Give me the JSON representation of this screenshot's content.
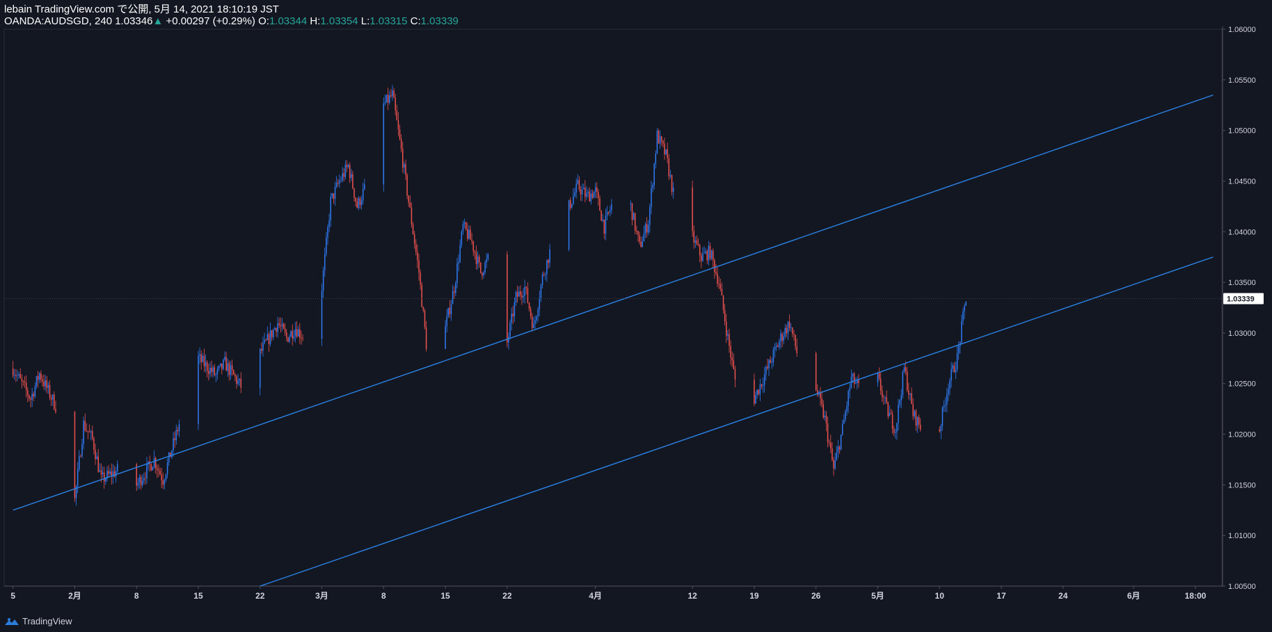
{
  "header": {
    "published": "lebain TradingView.com で公開, 5月 14, 2021 18:10:19 JST",
    "symbol": "OANDA:AUDSGD, 240",
    "last": "1.03346",
    "change": "+0.00297 (+0.29%)",
    "o_label": "O:",
    "o_value": "1.03344",
    "h_label": "H:",
    "h_value": "1.03354",
    "l_label": "L:",
    "l_value": "1.03315",
    "c_label": "C:",
    "c_value": "1.03339"
  },
  "footer": {
    "brand": "TradingView",
    "logo_icon": "tradingview-logo-icon"
  },
  "colors": {
    "background": "#131722",
    "up": "#2f7cf6",
    "down": "#f0524f",
    "channel": "#2a7ddc",
    "axis_text": "#d1d4dc",
    "price_tag_bg": "#ffffff"
  },
  "chart_data": {
    "type": "candlestick",
    "symbol": "OANDA:AUDSGD",
    "interval": "240",
    "ylim": [
      1.005,
      1.06
    ],
    "y_ticks": [
      "1.00500",
      "1.01000",
      "1.01500",
      "1.02000",
      "1.02500",
      "1.03000",
      "1.03500",
      "1.04000",
      "1.04500",
      "1.05000",
      "1.05500",
      "1.06000"
    ],
    "x_ticks": [
      {
        "label": "5",
        "date": "2021-01-25"
      },
      {
        "label": "2月",
        "date": "2021-02-01"
      },
      {
        "label": "8",
        "date": "2021-02-08"
      },
      {
        "label": "15",
        "date": "2021-02-15"
      },
      {
        "label": "22",
        "date": "2021-02-22"
      },
      {
        "label": "3月",
        "date": "2021-03-01"
      },
      {
        "label": "8",
        "date": "2021-03-08"
      },
      {
        "label": "15",
        "date": "2021-03-15"
      },
      {
        "label": "22",
        "date": "2021-03-22"
      },
      {
        "label": "4月",
        "date": "2021-04-01"
      },
      {
        "label": "12",
        "date": "2021-04-12"
      },
      {
        "label": "19",
        "date": "2021-04-19"
      },
      {
        "label": "26",
        "date": "2021-04-26"
      },
      {
        "label": "5月",
        "date": "2021-05-03"
      },
      {
        "label": "10",
        "date": "2021-05-10"
      },
      {
        "label": "17",
        "date": "2021-05-17"
      },
      {
        "label": "24",
        "date": "2021-05-24"
      },
      {
        "label": "6月",
        "date": "2021-06-01"
      },
      {
        "label": "18:00",
        "date": "2021-06-08"
      }
    ],
    "last_price_label": "1.03339",
    "price_path": [
      [
        "2021-01-25",
        1.0265
      ],
      [
        "2021-01-27",
        1.0235
      ],
      [
        "2021-01-28",
        1.026
      ],
      [
        "2021-01-30",
        1.0225
      ],
      [
        "2021-01-31",
        1.0165
      ],
      [
        "2021-02-01",
        1.0135
      ],
      [
        "2021-02-02",
        1.021
      ],
      [
        "2021-02-03",
        1.0195
      ],
      [
        "2021-02-04",
        1.0155
      ],
      [
        "2021-02-06",
        1.0165
      ],
      [
        "2021-02-07",
        1.0125
      ],
      [
        "2021-02-08",
        1.015
      ],
      [
        "2021-02-10",
        1.0175
      ],
      [
        "2021-02-11",
        1.0155
      ],
      [
        "2021-02-13",
        1.0215
      ],
      [
        "2021-02-14",
        1.025
      ],
      [
        "2021-02-15",
        1.0275
      ],
      [
        "2021-02-17",
        1.0258
      ],
      [
        "2021-02-18",
        1.027
      ],
      [
        "2021-02-20",
        1.0245
      ],
      [
        "2021-02-21",
        1.029
      ],
      [
        "2021-02-22",
        1.028
      ],
      [
        "2021-02-24",
        1.031
      ],
      [
        "2021-02-25",
        1.0295
      ],
      [
        "2021-02-26",
        1.0305
      ],
      [
        "2021-02-28",
        1.0285
      ],
      [
        "2021-03-01",
        1.0345
      ],
      [
        "2021-03-02",
        1.043
      ],
      [
        "2021-03-03",
        1.045
      ],
      [
        "2021-03-04",
        1.0465
      ],
      [
        "2021-03-05",
        1.0425
      ],
      [
        "2021-03-06",
        1.0445
      ],
      [
        "2021-03-07",
        1.047
      ],
      [
        "2021-03-08",
        1.0525
      ],
      [
        "2021-03-09",
        1.0535
      ],
      [
        "2021-03-10",
        1.048
      ],
      [
        "2021-03-11",
        1.042
      ],
      [
        "2021-03-12",
        1.036
      ],
      [
        "2021-03-13",
        1.0275
      ],
      [
        "2021-03-14",
        1.031
      ],
      [
        "2021-03-15",
        1.0305
      ],
      [
        "2021-03-16",
        1.0345
      ],
      [
        "2021-03-17",
        1.0405
      ],
      [
        "2021-03-18",
        1.039
      ],
      [
        "2021-03-19",
        1.036
      ],
      [
        "2021-03-20",
        1.0375
      ],
      [
        "2021-03-21",
        1.0335
      ],
      [
        "2021-03-22",
        1.029
      ],
      [
        "2021-03-23",
        1.0335
      ],
      [
        "2021-03-24",
        1.0345
      ],
      [
        "2021-03-25",
        1.0305
      ],
      [
        "2021-03-26",
        1.0355
      ],
      [
        "2021-03-27",
        1.0385
      ],
      [
        "2021-03-28",
        1.0395
      ],
      [
        "2021-03-29",
        1.0425
      ],
      [
        "2021-03-30",
        1.0445
      ],
      [
        "2021-03-31",
        1.0435
      ],
      [
        "2021-04-01",
        1.044
      ],
      [
        "2021-04-02",
        1.0405
      ],
      [
        "2021-04-03",
        1.043
      ],
      [
        "2021-04-04",
        1.0405
      ],
      [
        "2021-04-05",
        1.0425
      ],
      [
        "2021-04-06",
        1.0385
      ],
      [
        "2021-04-07",
        1.041
      ],
      [
        "2021-04-08",
        1.0495
      ],
      [
        "2021-04-09",
        1.0475
      ],
      [
        "2021-04-10",
        1.043
      ],
      [
        "2021-04-11",
        1.0405
      ],
      [
        "2021-04-12",
        1.0395
      ],
      [
        "2021-04-13",
        1.0375
      ],
      [
        "2021-04-14",
        1.038
      ],
      [
        "2021-04-15",
        1.035
      ],
      [
        "2021-04-16",
        1.0295
      ],
      [
        "2021-04-17",
        1.0245
      ],
      [
        "2021-04-18",
        1.022
      ],
      [
        "2021-04-19",
        1.0235
      ],
      [
        "2021-04-20",
        1.0255
      ],
      [
        "2021-04-21",
        1.0275
      ],
      [
        "2021-04-22",
        1.0295
      ],
      [
        "2021-04-23",
        1.031
      ],
      [
        "2021-04-24",
        1.0275
      ],
      [
        "2021-04-25",
        1.025
      ],
      [
        "2021-04-26",
        1.0245
      ],
      [
        "2021-04-27",
        1.0215
      ],
      [
        "2021-04-28",
        1.0165
      ],
      [
        "2021-04-29",
        1.0205
      ],
      [
        "2021-04-30",
        1.0255
      ],
      [
        "2021-05-01",
        1.0245
      ],
      [
        "2021-05-02",
        1.0265
      ],
      [
        "2021-05-03",
        1.0255
      ],
      [
        "2021-05-04",
        1.0225
      ],
      [
        "2021-05-05",
        1.0205
      ],
      [
        "2021-05-06",
        1.0265
      ],
      [
        "2021-05-07",
        1.022
      ],
      [
        "2021-05-08",
        1.0205
      ],
      [
        "2021-05-09",
        1.0225
      ],
      [
        "2021-05-10",
        1.0205
      ],
      [
        "2021-05-11",
        1.025
      ],
      [
        "2021-05-12",
        1.0275
      ],
      [
        "2021-05-13",
        1.0335
      ]
    ],
    "channel_lines": [
      {
        "name": "upper",
        "start": [
          "2021-01-25",
          1.0125
        ],
        "end": [
          "2021-06-10",
          1.0535
        ]
      },
      {
        "name": "lower",
        "start": [
          "2021-02-22",
          1.005
        ],
        "end": [
          "2021-06-10",
          1.0375
        ]
      }
    ]
  }
}
